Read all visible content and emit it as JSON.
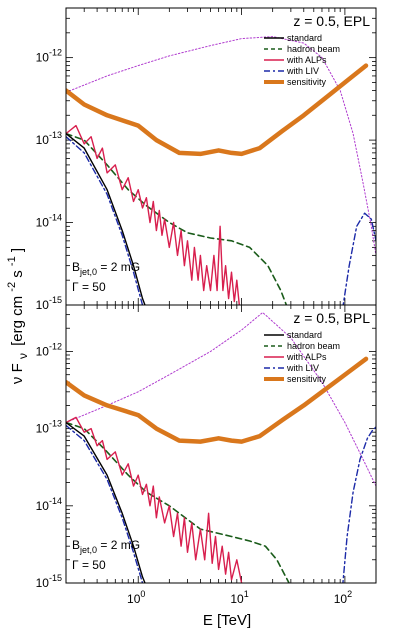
{
  "figure": {
    "xlabel": "E [TeV]",
    "ylabel": "ν F_ν [erg cm⁻² s⁻¹]",
    "ylabel_main": "ν F",
    "ylabel_sub": "ν",
    "ylabel_units": "[erg cm",
    "ylabel_exp": "-2",
    "ylabel_tail": " s",
    "ylabel_exp2": "-1",
    "ylabel_close": "]"
  },
  "chart_data": [
    {
      "type": "line",
      "title": "z = 0.5, EPL",
      "xlabel": "E [TeV]",
      "ylabel": "ν F_ν [erg cm⁻² s⁻¹]",
      "xscale": "log",
      "yscale": "log",
      "xlim": [
        0.2,
        200
      ],
      "ylim": [
        1e-15,
        4e-12
      ],
      "x_ticks": [
        {
          "v": 1,
          "base": "10",
          "exp": "0"
        },
        {
          "v": 10,
          "base": "10",
          "exp": "1"
        },
        {
          "v": 100,
          "base": "10",
          "exp": "2"
        }
      ],
      "y_ticks": [
        {
          "v": 1e-15,
          "base": "10",
          "exp": "-15"
        },
        {
          "v": 1e-14,
          "base": "10",
          "exp": "-14"
        },
        {
          "v": 1e-13,
          "base": "10",
          "exp": "-13"
        },
        {
          "v": 1e-12,
          "base": "10",
          "exp": "-12"
        }
      ],
      "annotation": {
        "b_base": "B",
        "b_sub": "jet,0",
        "b_value": " = 2 mG",
        "gamma": "Γ = 50"
      },
      "legend_position": "top-right",
      "series": [
        {
          "name": "standard",
          "color": "#000000",
          "style": "solid",
          "points": [
            [
              0.2,
              1.2e-13
            ],
            [
              0.3,
              8e-14
            ],
            [
              0.5,
              2.5e-14
            ],
            [
              0.7,
              8e-15
            ],
            [
              0.9,
              3e-15
            ],
            [
              1.1,
              1.2e-15
            ],
            [
              1.2,
              9e-16
            ]
          ]
        },
        {
          "name": "hadron beam",
          "color": "#1a5c1a",
          "style": "dashed",
          "points": [
            [
              0.2,
              1.2e-13
            ],
            [
              0.3,
              1e-13
            ],
            [
              0.5,
              5e-14
            ],
            [
              0.8,
              2.5e-14
            ],
            [
              1.2,
              1.6e-14
            ],
            [
              2,
              1e-14
            ],
            [
              3,
              7.5e-15
            ],
            [
              5,
              6.5e-15
            ],
            [
              8,
              6e-15
            ],
            [
              12,
              5e-15
            ],
            [
              18,
              3e-15
            ],
            [
              24,
              1.5e-15
            ],
            [
              28,
              9e-16
            ]
          ]
        },
        {
          "name": "with ALPs",
          "color": "#d81f4e",
          "style": "solid",
          "points": [
            [
              0.2,
              1.2e-13
            ],
            [
              0.25,
              1.5e-13
            ],
            [
              0.3,
              9e-14
            ],
            [
              0.35,
              1.1e-13
            ],
            [
              0.4,
              6e-14
            ],
            [
              0.45,
              8e-14
            ],
            [
              0.5,
              4e-14
            ],
            [
              0.6,
              5e-14
            ],
            [
              0.7,
              2.5e-14
            ],
            [
              0.8,
              3.5e-14
            ],
            [
              0.9,
              1.8e-14
            ],
            [
              1,
              2.5e-14
            ],
            [
              1.1,
              1.5e-14
            ],
            [
              1.2,
              2e-14
            ],
            [
              1.3,
              1e-14
            ],
            [
              1.4,
              1.8e-14
            ],
            [
              1.5,
              8e-15
            ],
            [
              1.6,
              1.4e-14
            ],
            [
              1.7,
              7e-15
            ],
            [
              1.8,
              1.1e-14
            ],
            [
              2,
              5e-15
            ],
            [
              2.2,
              1e-14
            ],
            [
              2.4,
              4e-15
            ],
            [
              2.6,
              8e-15
            ],
            [
              2.8,
              3e-15
            ],
            [
              3,
              6e-15
            ],
            [
              3.3,
              2e-15
            ],
            [
              3.5,
              5e-15
            ],
            [
              3.8,
              2e-15
            ],
            [
              4,
              4e-15
            ],
            [
              4.3,
              1.5e-15
            ],
            [
              4.6,
              3e-15
            ],
            [
              5,
              1.5e-15
            ],
            [
              5.4,
              4e-15
            ],
            [
              5.8,
              1.5e-15
            ],
            [
              6.2,
              9e-15
            ],
            [
              6.6,
              1.5e-15
            ],
            [
              7,
              3e-15
            ],
            [
              7.5,
              1.2e-15
            ],
            [
              8,
              2.5e-15
            ],
            [
              8.5,
              1.1e-15
            ],
            [
              9,
              2e-15
            ],
            [
              9.5,
              1e-15
            ]
          ]
        },
        {
          "name": "with LIV",
          "color": "#1c2aa8",
          "style": "dashdot",
          "points": [
            [
              0.2,
              1.1e-13
            ],
            [
              0.3,
              7e-14
            ],
            [
              0.5,
              2.2e-14
            ],
            [
              0.7,
              7e-15
            ],
            [
              0.9,
              2.5e-15
            ],
            [
              1.1,
              1e-15
            ],
            [
              1.2,
              9e-16
            ]
          ],
          "points2": [
            [
              95,
              9e-16
            ],
            [
              110,
              3e-15
            ],
            [
              130,
              9e-15
            ],
            [
              155,
              1.3e-14
            ],
            [
              180,
              1.1e-14
            ],
            [
              200,
              6e-15
            ]
          ]
        },
        {
          "name": "sensitivity",
          "color": "#d9771c",
          "style": "thick",
          "points": [
            [
              0.2,
              4e-13
            ],
            [
              0.3,
              2.7e-13
            ],
            [
              0.5,
              2e-13
            ],
            [
              1,
              1.5e-13
            ],
            [
              1.5,
              1e-13
            ],
            [
              2.5,
              7e-14
            ],
            [
              4,
              6.8e-14
            ],
            [
              6,
              7.5e-14
            ],
            [
              8,
              7e-14
            ],
            [
              10,
              6.8e-14
            ],
            [
              15,
              8e-14
            ],
            [
              25,
              1.3e-13
            ],
            [
              40,
              2e-13
            ],
            [
              70,
              3.5e-13
            ],
            [
              110,
              5.5e-13
            ],
            [
              160,
              8e-13
            ]
          ]
        },
        {
          "name": "",
          "color": "#b03ccf",
          "style": "dotted",
          "points": [
            [
              0.2,
              3.8e-13
            ],
            [
              0.5,
              6e-13
            ],
            [
              1,
              8e-13
            ],
            [
              2,
              1.05e-12
            ],
            [
              5,
              1.4e-12
            ],
            [
              10,
              1.7e-12
            ],
            [
              20,
              1.8e-12
            ],
            [
              40,
              1.5e-12
            ],
            [
              60,
              1e-12
            ],
            [
              90,
              4e-13
            ],
            [
              120,
              1.2e-13
            ],
            [
              150,
              3e-14
            ],
            [
              180,
              9e-15
            ],
            [
              200,
              4e-15
            ]
          ]
        }
      ]
    },
    {
      "type": "line",
      "title": "z = 0.5, BPL",
      "xlabel": "E [TeV]",
      "ylabel": "ν F_ν [erg cm⁻² s⁻¹]",
      "xscale": "log",
      "yscale": "log",
      "xlim": [
        0.2,
        200
      ],
      "ylim": [
        1e-15,
        4e-12
      ],
      "x_ticks": [
        {
          "v": 1,
          "base": "10",
          "exp": "0"
        },
        {
          "v": 10,
          "base": "10",
          "exp": "1"
        },
        {
          "v": 100,
          "base": "10",
          "exp": "2"
        }
      ],
      "y_ticks": [
        {
          "v": 1e-15,
          "base": "10",
          "exp": "-15"
        },
        {
          "v": 1e-14,
          "base": "10",
          "exp": "-14"
        },
        {
          "v": 1e-13,
          "base": "10",
          "exp": "-13"
        },
        {
          "v": 1e-12,
          "base": "10",
          "exp": "-12"
        }
      ],
      "annotation": {
        "b_base": "B",
        "b_sub": "jet,0",
        "b_value": " = 2 mG",
        "gamma": "Γ = 50"
      },
      "legend_position": "top-right",
      "series": [
        {
          "name": "standard",
          "color": "#000000",
          "style": "solid",
          "points": [
            [
              0.2,
              1.2e-13
            ],
            [
              0.3,
              8e-14
            ],
            [
              0.5,
              2.5e-14
            ],
            [
              0.7,
              8e-15
            ],
            [
              0.9,
              3e-15
            ],
            [
              1.1,
              1.2e-15
            ],
            [
              1.2,
              9e-16
            ]
          ]
        },
        {
          "name": "hadron beam",
          "color": "#1a5c1a",
          "style": "dashed",
          "points": [
            [
              0.2,
              1.2e-13
            ],
            [
              0.3,
              1e-13
            ],
            [
              0.5,
              5e-14
            ],
            [
              0.8,
              2.5e-14
            ],
            [
              1.2,
              1.5e-14
            ],
            [
              2,
              1e-14
            ],
            [
              4,
              5e-15
            ],
            [
              8,
              4e-15
            ],
            [
              12,
              3.5e-15
            ],
            [
              17,
              3e-15
            ],
            [
              22,
              2e-15
            ],
            [
              26,
              1.3e-15
            ],
            [
              30,
              9e-16
            ]
          ]
        },
        {
          "name": "with ALPs",
          "color": "#d81f4e",
          "style": "solid",
          "points": [
            [
              0.2,
              1.2e-13
            ],
            [
              0.25,
              1.4e-13
            ],
            [
              0.3,
              9e-14
            ],
            [
              0.35,
              1e-13
            ],
            [
              0.4,
              6e-14
            ],
            [
              0.45,
              7e-14
            ],
            [
              0.5,
              4e-14
            ],
            [
              0.6,
              5e-14
            ],
            [
              0.7,
              2.5e-14
            ],
            [
              0.8,
              3.5e-14
            ],
            [
              0.9,
              1.8e-14
            ],
            [
              1,
              2.5e-14
            ],
            [
              1.1,
              1.4e-14
            ],
            [
              1.2,
              1.9e-14
            ],
            [
              1.3,
              1e-14
            ],
            [
              1.4,
              1.8e-14
            ],
            [
              1.5,
              7e-15
            ],
            [
              1.6,
              1.3e-14
            ],
            [
              1.8,
              6e-15
            ],
            [
              2,
              1e-14
            ],
            [
              2.2,
              4e-15
            ],
            [
              2.4,
              8e-15
            ],
            [
              2.6,
              3e-15
            ],
            [
              2.8,
              7e-15
            ],
            [
              3,
              2.5e-15
            ],
            [
              3.3,
              6e-15
            ],
            [
              3.6,
              2e-15
            ],
            [
              4,
              5e-15
            ],
            [
              4.4,
              2e-15
            ],
            [
              4.8,
              8e-15
            ],
            [
              5.2,
              1.8e-15
            ],
            [
              5.6,
              4e-15
            ],
            [
              6,
              1.5e-15
            ],
            [
              6.5,
              3e-15
            ],
            [
              7,
              1.3e-15
            ],
            [
              7.5,
              2.5e-15
            ],
            [
              8,
              1.1e-15
            ],
            [
              9,
              2e-15
            ],
            [
              10,
              1e-15
            ]
          ]
        },
        {
          "name": "with LIV",
          "color": "#1c2aa8",
          "style": "dashdot",
          "points": [
            [
              0.2,
              1.1e-13
            ],
            [
              0.3,
              7e-14
            ],
            [
              0.5,
              2.2e-14
            ],
            [
              0.7,
              7e-15
            ],
            [
              0.9,
              2.5e-15
            ],
            [
              1.1,
              1e-15
            ],
            [
              1.2,
              9e-16
            ]
          ],
          "points2": [
            [
              95,
              9e-16
            ],
            [
              105,
              4e-15
            ],
            [
              120,
              1.5e-14
            ],
            [
              140,
              4e-14
            ],
            [
              165,
              7.5e-14
            ],
            [
              185,
              9.5e-14
            ],
            [
              200,
              1.05e-13
            ]
          ]
        },
        {
          "name": "sensitivity",
          "color": "#d9771c",
          "style": "thick",
          "points": [
            [
              0.2,
              4e-13
            ],
            [
              0.3,
              2.7e-13
            ],
            [
              0.5,
              2e-13
            ],
            [
              1,
              1.5e-13
            ],
            [
              1.5,
              1e-13
            ],
            [
              2.5,
              7e-14
            ],
            [
              4,
              6.8e-14
            ],
            [
              6,
              7.5e-14
            ],
            [
              8,
              7e-14
            ],
            [
              10,
              6.8e-14
            ],
            [
              15,
              8e-14
            ],
            [
              25,
              1.3e-13
            ],
            [
              40,
              2e-13
            ],
            [
              70,
              3.5e-13
            ],
            [
              110,
              5.5e-13
            ],
            [
              160,
              8e-13
            ]
          ]
        },
        {
          "name": "",
          "color": "#b03ccf",
          "style": "dotted",
          "points": [
            [
              0.2,
              1.2e-13
            ],
            [
              0.5,
              2e-13
            ],
            [
              1,
              3e-13
            ],
            [
              2,
              5e-13
            ],
            [
              5,
              1e-12
            ],
            [
              10,
              1.9e-12
            ],
            [
              16,
              3.2e-12
            ],
            [
              30,
              1.5e-12
            ],
            [
              60,
              4e-13
            ],
            [
              100,
              1.2e-13
            ],
            [
              150,
              4e-14
            ],
            [
              200,
              1.8e-14
            ]
          ]
        }
      ]
    }
  ]
}
